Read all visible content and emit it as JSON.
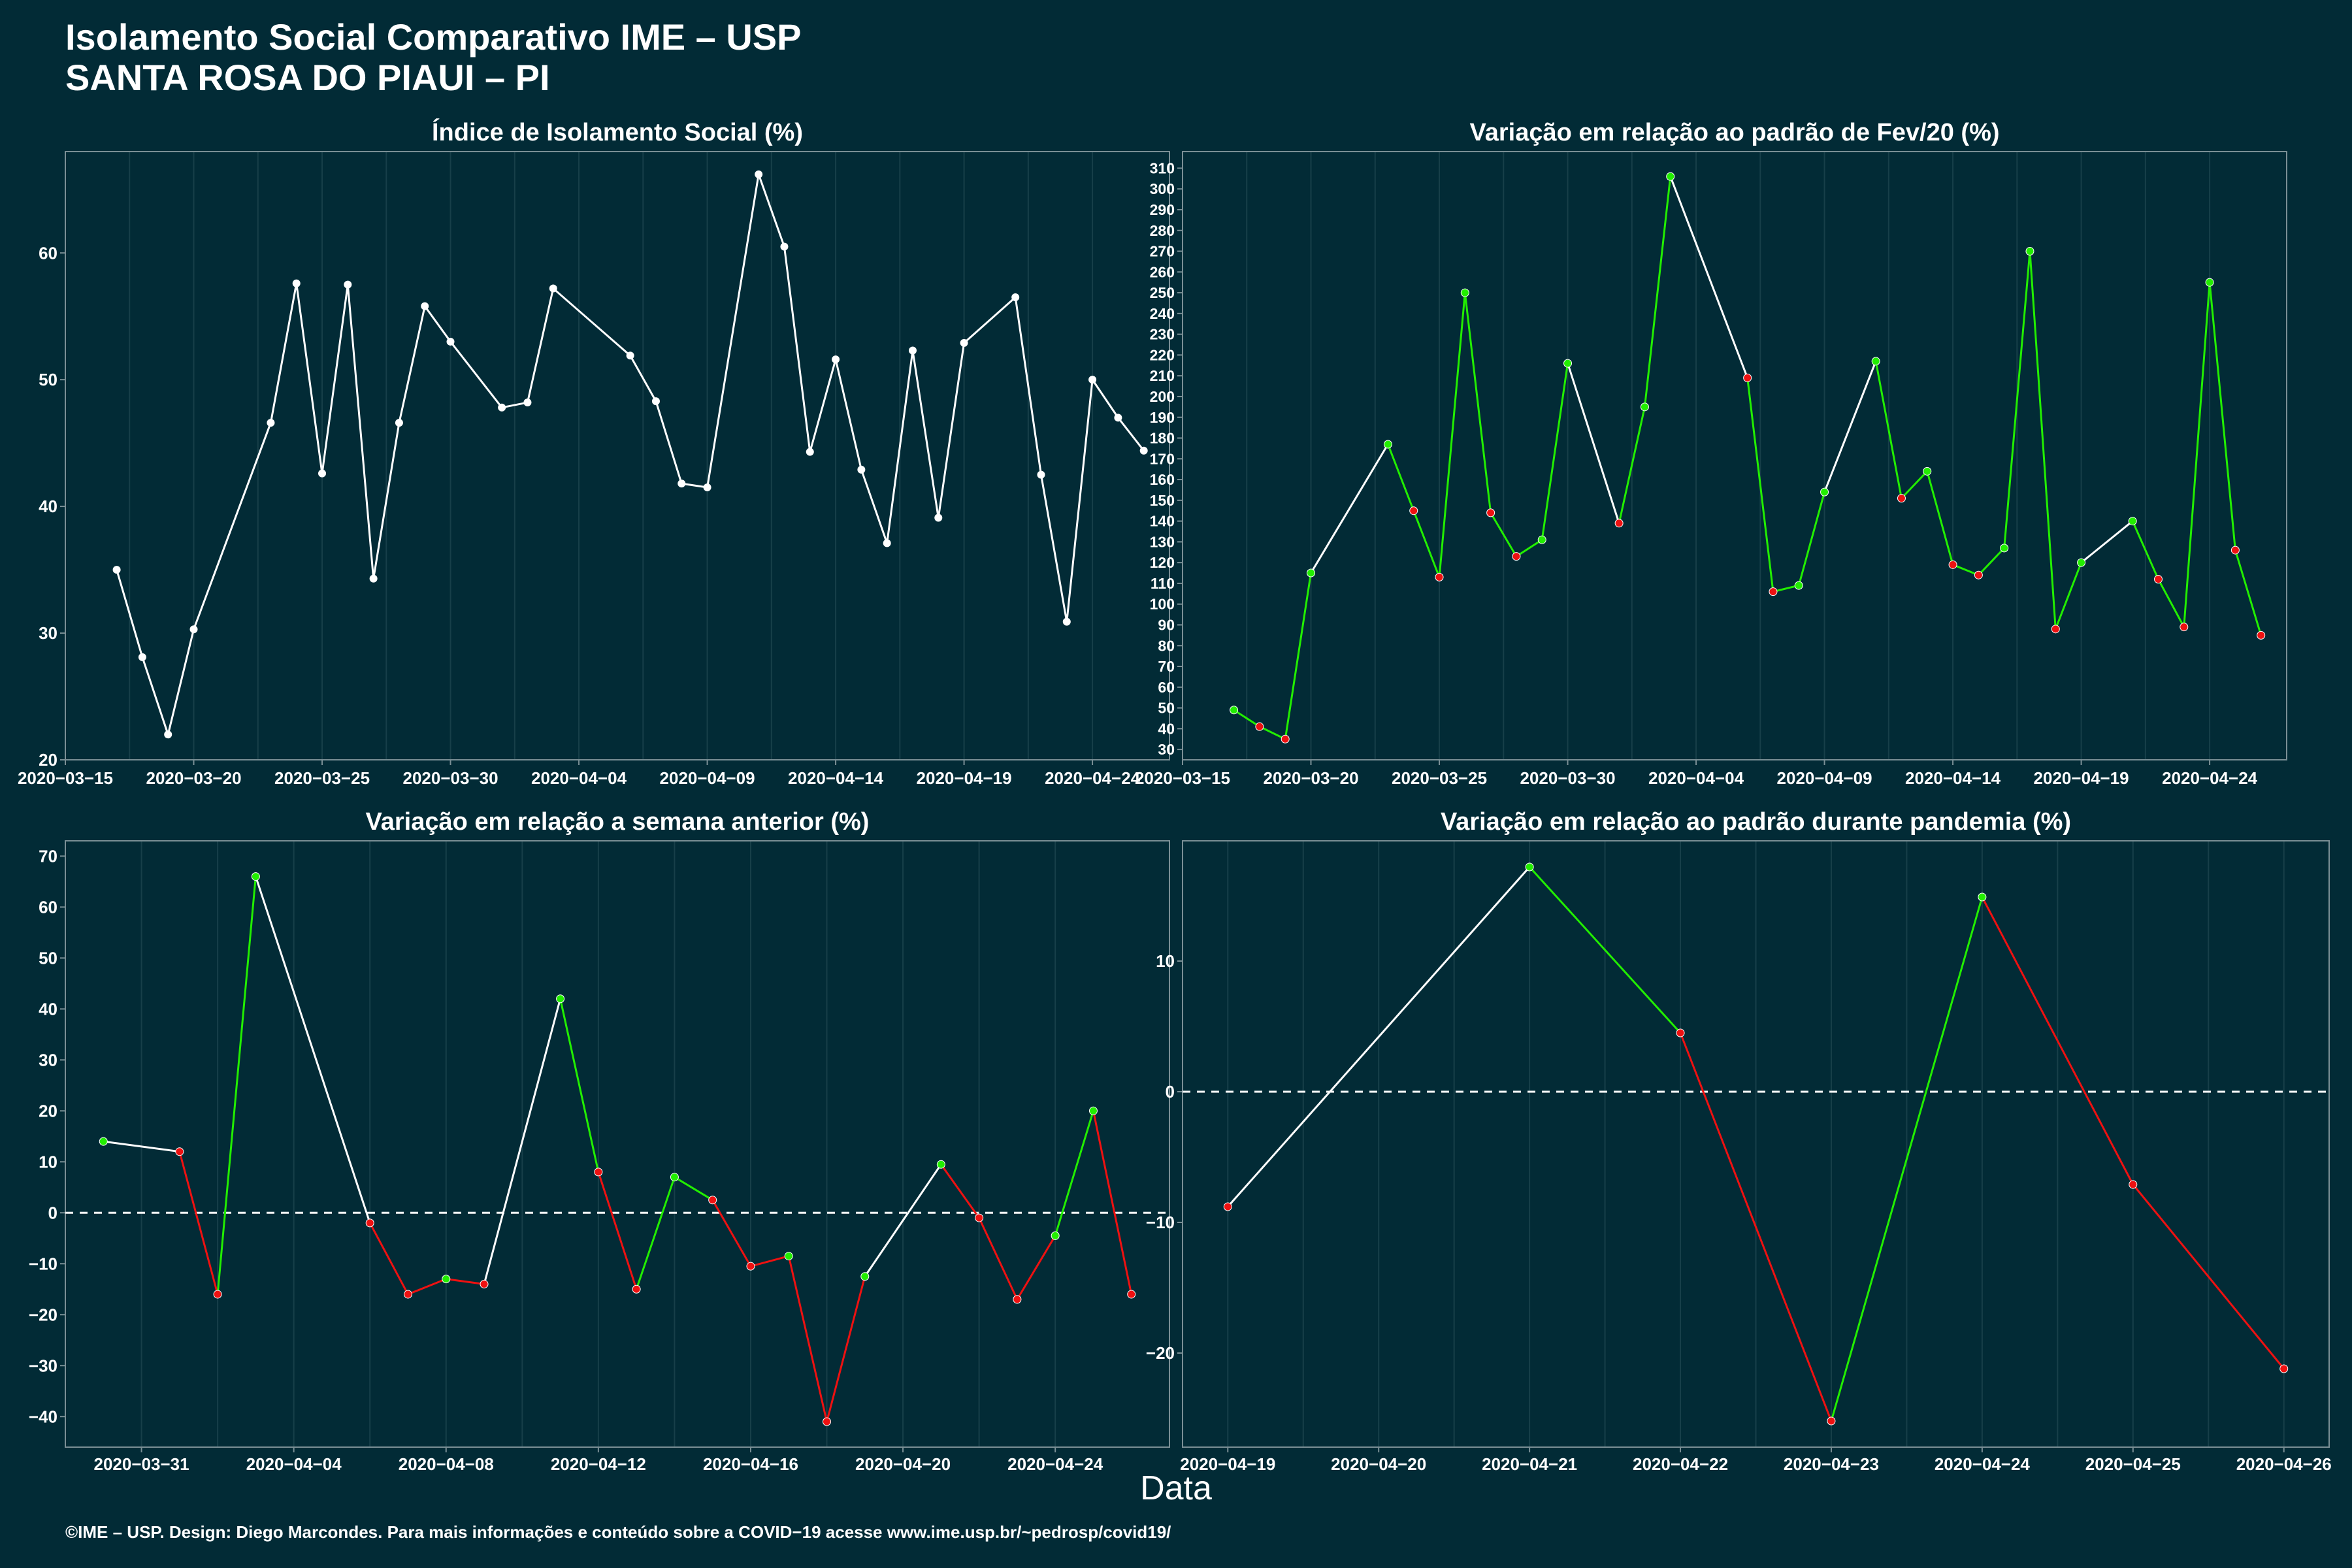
{
  "title": {
    "line1": "Isolamento Social Comparativo IME – USP",
    "line2": "SANTA ROSA DO PIAUI – PI"
  },
  "xlabel": "Data",
  "footer": "©IME – USP. Design: Diego Marcondes. Para mais informações e conteúdo sobre a COVID−19 acesse www.ime.usp.br/~pedrosp/covid19/",
  "colors": {
    "background": "#022b36",
    "line_white": "#ffffff",
    "up": "#22ee00",
    "down": "#ee1111",
    "axis": "#7a8f95",
    "grid": "#173f49"
  },
  "chart_data": [
    {
      "id": "isolamento",
      "type": "line",
      "title": "Índice de Isolamento Social (%)",
      "color_mode": "white",
      "xdate": true,
      "xlim": [
        "2020-03-15",
        "2020-04-27"
      ],
      "xticks": [
        "2020-03-15",
        "2020-03-20",
        "2020-03-25",
        "2020-03-30",
        "2020-04-04",
        "2020-04-09",
        "2020-04-14",
        "2020-04-19",
        "2020-04-24"
      ],
      "ylim": [
        20,
        68
      ],
      "yticks": [
        20,
        30,
        40,
        50,
        60
      ],
      "dashed_zero": false,
      "x": [
        "2020-03-17",
        "2020-03-18",
        "2020-03-19",
        "2020-03-20",
        "2020-03-23",
        "2020-03-24",
        "2020-03-25",
        "2020-03-26",
        "2020-03-27",
        "2020-03-28",
        "2020-03-29",
        "2020-03-30",
        "2020-04-01",
        "2020-04-02",
        "2020-04-03",
        "2020-04-06",
        "2020-04-07",
        "2020-04-08",
        "2020-04-09",
        "2020-04-11",
        "2020-04-12",
        "2020-04-13",
        "2020-04-14",
        "2020-04-15",
        "2020-04-16",
        "2020-04-17",
        "2020-04-18",
        "2020-04-19",
        "2020-04-21",
        "2020-04-22",
        "2020-04-23",
        "2020-04-24",
        "2020-04-25",
        "2020-04-26"
      ],
      "y": [
        35.0,
        28.1,
        22.0,
        30.3,
        46.6,
        57.6,
        42.6,
        57.5,
        34.3,
        46.6,
        55.8,
        53.0,
        47.8,
        48.2,
        57.2,
        51.9,
        48.3,
        41.8,
        41.5,
        66.2,
        60.5,
        44.3,
        51.6,
        42.9,
        37.1,
        52.3,
        39.1,
        52.9,
        56.5,
        42.5,
        30.9,
        50.0,
        47.0,
        44.4
      ]
    },
    {
      "id": "fev20",
      "type": "line",
      "title": "Variação em relação ao padrão de Fev/20 (%)",
      "color_mode": "updown",
      "xdate": true,
      "xlim": [
        "2020-03-15",
        "2020-04-27"
      ],
      "xticks": [
        "2020-03-15",
        "2020-03-20",
        "2020-03-25",
        "2020-03-30",
        "2020-04-04",
        "2020-04-09",
        "2020-04-14",
        "2020-04-19",
        "2020-04-24"
      ],
      "ylim": [
        25,
        318
      ],
      "yticks": [
        30,
        40,
        50,
        60,
        70,
        80,
        90,
        100,
        110,
        120,
        130,
        140,
        150,
        160,
        170,
        180,
        190,
        200,
        210,
        220,
        230,
        240,
        250,
        260,
        270,
        280,
        290,
        300,
        310
      ],
      "dashed_zero": false,
      "x": [
        "2020-03-17",
        "2020-03-18",
        "2020-03-19",
        "2020-03-20",
        "2020-03-23",
        "2020-03-24",
        "2020-03-25",
        "2020-03-26",
        "2020-03-27",
        "2020-03-28",
        "2020-03-29",
        "2020-03-30",
        "2020-04-01",
        "2020-04-02",
        "2020-04-03",
        "2020-04-06",
        "2020-04-07",
        "2020-04-08",
        "2020-04-09",
        "2020-04-11",
        "2020-04-12",
        "2020-04-13",
        "2020-04-14",
        "2020-04-15",
        "2020-04-16",
        "2020-04-17",
        "2020-04-18",
        "2020-04-19",
        "2020-04-21",
        "2020-04-22",
        "2020-04-23",
        "2020-04-24",
        "2020-04-25",
        "2020-04-26"
      ],
      "y": [
        49,
        41,
        35,
        115,
        177,
        145,
        113,
        250,
        144,
        123,
        131,
        216,
        139,
        195,
        306,
        209,
        106,
        109,
        154,
        217,
        151,
        164,
        119,
        114,
        127,
        270,
        88,
        120,
        140,
        112,
        89,
        255,
        126,
        85
      ],
      "segment_colors": [
        "g",
        "g",
        "g",
        "w",
        "g",
        "g",
        "g",
        "g",
        "g",
        "g",
        "g",
        "w",
        "g",
        "g",
        "w",
        "g",
        "g",
        "g",
        "w",
        "g",
        "g",
        "g",
        "g",
        "g",
        "g",
        "g",
        "g",
        "w",
        "g",
        "g",
        "g",
        "g",
        "g"
      ]
    },
    {
      "id": "semana",
      "type": "line",
      "title": "Variação em relação a semana anterior (%)",
      "color_mode": "updown",
      "xdate": true,
      "xlim": [
        "2020-03-29",
        "2020-04-27"
      ],
      "xticks": [
        "2020-03-31",
        "2020-04-04",
        "2020-04-08",
        "2020-04-12",
        "2020-04-16",
        "2020-04-20",
        "2020-04-24"
      ],
      "ylim": [
        -46,
        73
      ],
      "yticks": [
        -40,
        -30,
        -20,
        -10,
        0,
        10,
        20,
        30,
        40,
        50,
        60,
        70
      ],
      "dashed_zero": true,
      "x": [
        "2020-03-30",
        "2020-04-01",
        "2020-04-02",
        "2020-04-03",
        "2020-04-06",
        "2020-04-07",
        "2020-04-08",
        "2020-04-09",
        "2020-04-11",
        "2020-04-12",
        "2020-04-13",
        "2020-04-14",
        "2020-04-15",
        "2020-04-16",
        "2020-04-17",
        "2020-04-18",
        "2020-04-19",
        "2020-04-21",
        "2020-04-22",
        "2020-04-23",
        "2020-04-24",
        "2020-04-25",
        "2020-04-26"
      ],
      "y": [
        14,
        12,
        -16,
        66,
        -2,
        -16,
        -13,
        -14,
        42,
        8,
        -15,
        7,
        2.5,
        -10.5,
        -8.5,
        -41,
        -12.5,
        9.5,
        -1,
        -17,
        -4.5,
        20,
        -16
      ],
      "segment_colors": [
        "w",
        "r",
        "g",
        "w",
        "r",
        "r",
        "r",
        "w",
        "g",
        "r",
        "g",
        "g",
        "r",
        "r",
        "r",
        "r",
        "w",
        "r",
        "r",
        "r",
        "g",
        "r"
      ]
    },
    {
      "id": "pandemia",
      "type": "line",
      "title": "Variação em relação ao padrão durante pandemia (%)",
      "color_mode": "updown",
      "xdate": true,
      "xlim": [
        "2020-04-18.7",
        "2020-04-26.3"
      ],
      "xticks": [
        "2020-04-19",
        "2020-04-20",
        "2020-04-21",
        "2020-04-22",
        "2020-04-23",
        "2020-04-24",
        "2020-04-25",
        "2020-04-26"
      ],
      "ylim": [
        -27.2,
        19.2
      ],
      "yticks": [
        -20,
        -10,
        0,
        10
      ],
      "dashed_zero": true,
      "x": [
        "2020-04-19",
        "2020-04-21",
        "2020-04-22",
        "2020-04-23",
        "2020-04-24",
        "2020-04-25",
        "2020-04-26"
      ],
      "y": [
        -8.8,
        17.2,
        4.5,
        -25.2,
        14.9,
        -7.1,
        -21.2
      ],
      "segment_colors": [
        "w",
        "g",
        "r",
        "g",
        "r",
        "r"
      ]
    }
  ]
}
